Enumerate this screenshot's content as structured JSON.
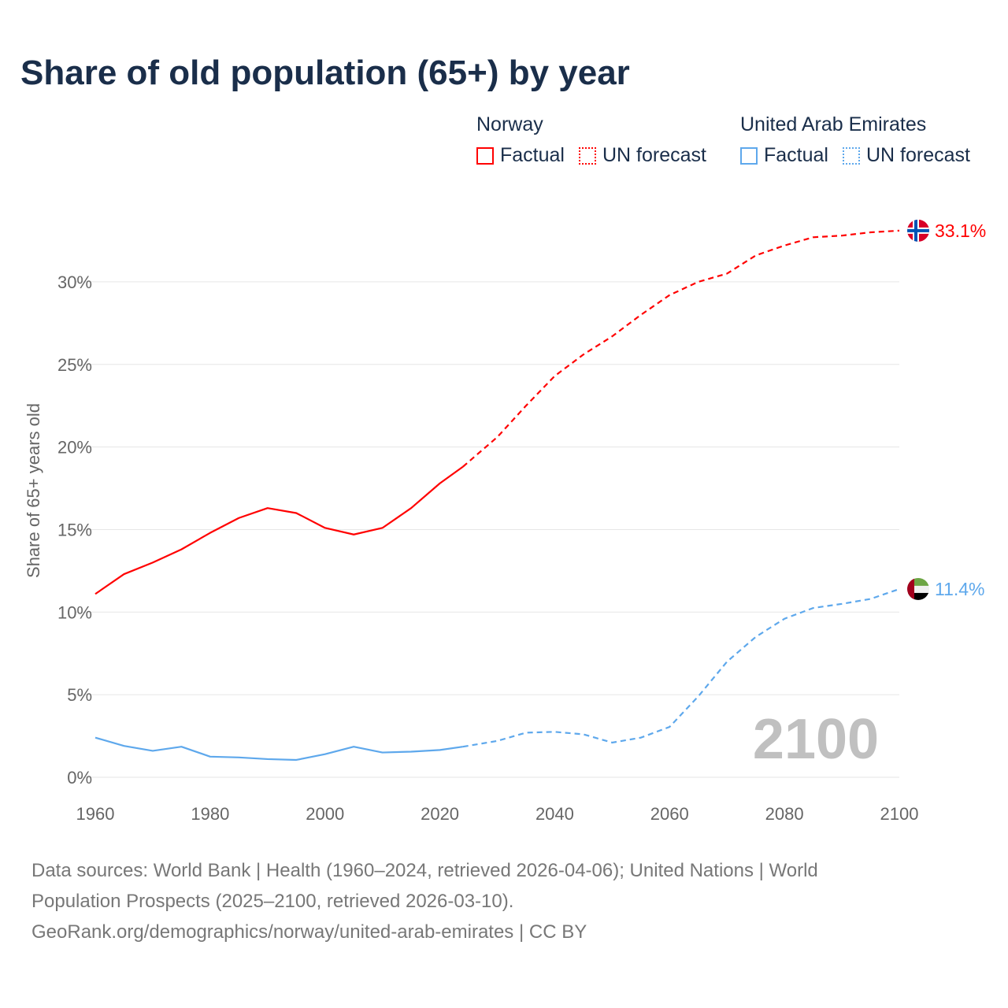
{
  "title": "Share of old population (65+) by year",
  "legend": {
    "norway": {
      "name": "Norway",
      "factual": "Factual",
      "forecast": "UN forecast"
    },
    "uae": {
      "name": "United Arab Emirates",
      "factual": "Factual",
      "forecast": "UN forecast"
    }
  },
  "colors": {
    "norway": "#ff0000",
    "uae": "#5ea8ec",
    "title": "#1a2e4a",
    "year": "#c0c0c0"
  },
  "year_watermark": "2100",
  "source": {
    "line1": "Data sources: World Bank | Health (1960–2024, retrieved 2026-04-06); United Nations | World",
    "line2": "Population Prospects (2025–2100, retrieved 2026-03-10).",
    "line3": "GeoRank.org/demographics/norway/united-arab-emirates | CC BY"
  },
  "chart_data": {
    "type": "line",
    "title": "Share of old population (65+) by year",
    "xlabel": "",
    "ylabel": "Share of 65+ years old",
    "xlim": [
      1960,
      2100
    ],
    "ylim": [
      0,
      33.1
    ],
    "x_ticks": [
      "1960",
      "1980",
      "2000",
      "2020",
      "2040",
      "2060",
      "2080",
      "2100"
    ],
    "y_ticks": [
      "0%",
      "5%",
      "10%",
      "15%",
      "20%",
      "25%",
      "30%"
    ],
    "y_tick_values": [
      0,
      5,
      10,
      15,
      20,
      25,
      30
    ],
    "grid": true,
    "forecast_start": 2024,
    "x": [
      1960,
      1965,
      1970,
      1975,
      1980,
      1985,
      1990,
      1995,
      2000,
      2005,
      2010,
      2015,
      2020,
      2024,
      2030,
      2035,
      2040,
      2045,
      2050,
      2055,
      2060,
      2065,
      2070,
      2075,
      2080,
      2085,
      2090,
      2095,
      2100
    ],
    "series": [
      {
        "name": "Norway",
        "end_label": "33.1%",
        "values": [
          11.1,
          12.3,
          13.0,
          13.8,
          14.8,
          15.7,
          16.3,
          16.0,
          15.1,
          14.7,
          15.1,
          16.3,
          17.8,
          18.8,
          20.6,
          22.5,
          24.3,
          25.6,
          26.7,
          28.0,
          29.2,
          30.0,
          30.5,
          31.6,
          32.2,
          32.7,
          32.8,
          33.0,
          33.1
        ]
      },
      {
        "name": "United Arab Emirates",
        "end_label": "11.4%",
        "values": [
          2.4,
          1.9,
          1.6,
          1.85,
          1.25,
          1.2,
          1.1,
          1.05,
          1.4,
          1.85,
          1.5,
          1.55,
          1.65,
          1.85,
          2.2,
          2.7,
          2.75,
          2.6,
          2.1,
          2.4,
          3.05,
          4.9,
          7.0,
          8.5,
          9.6,
          10.25,
          10.5,
          10.8,
          11.4
        ]
      }
    ]
  }
}
